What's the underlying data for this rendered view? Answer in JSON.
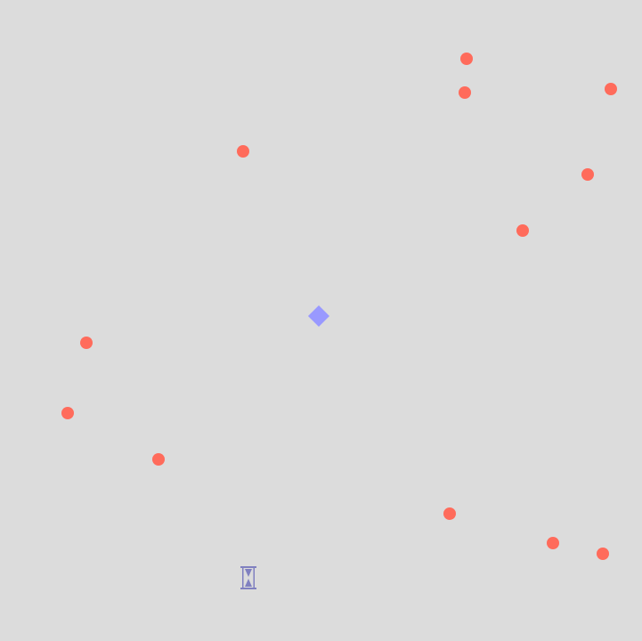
{
  "colors": {
    "background": "#dcdcdc",
    "enemy": "#ff6b5b",
    "player": "#9999ff",
    "hourglass": "#8080c0"
  },
  "icons": {
    "player": "diamond-player-icon",
    "powerup": "hourglass-icon",
    "enemy": "red-dot-enemy"
  }
}
